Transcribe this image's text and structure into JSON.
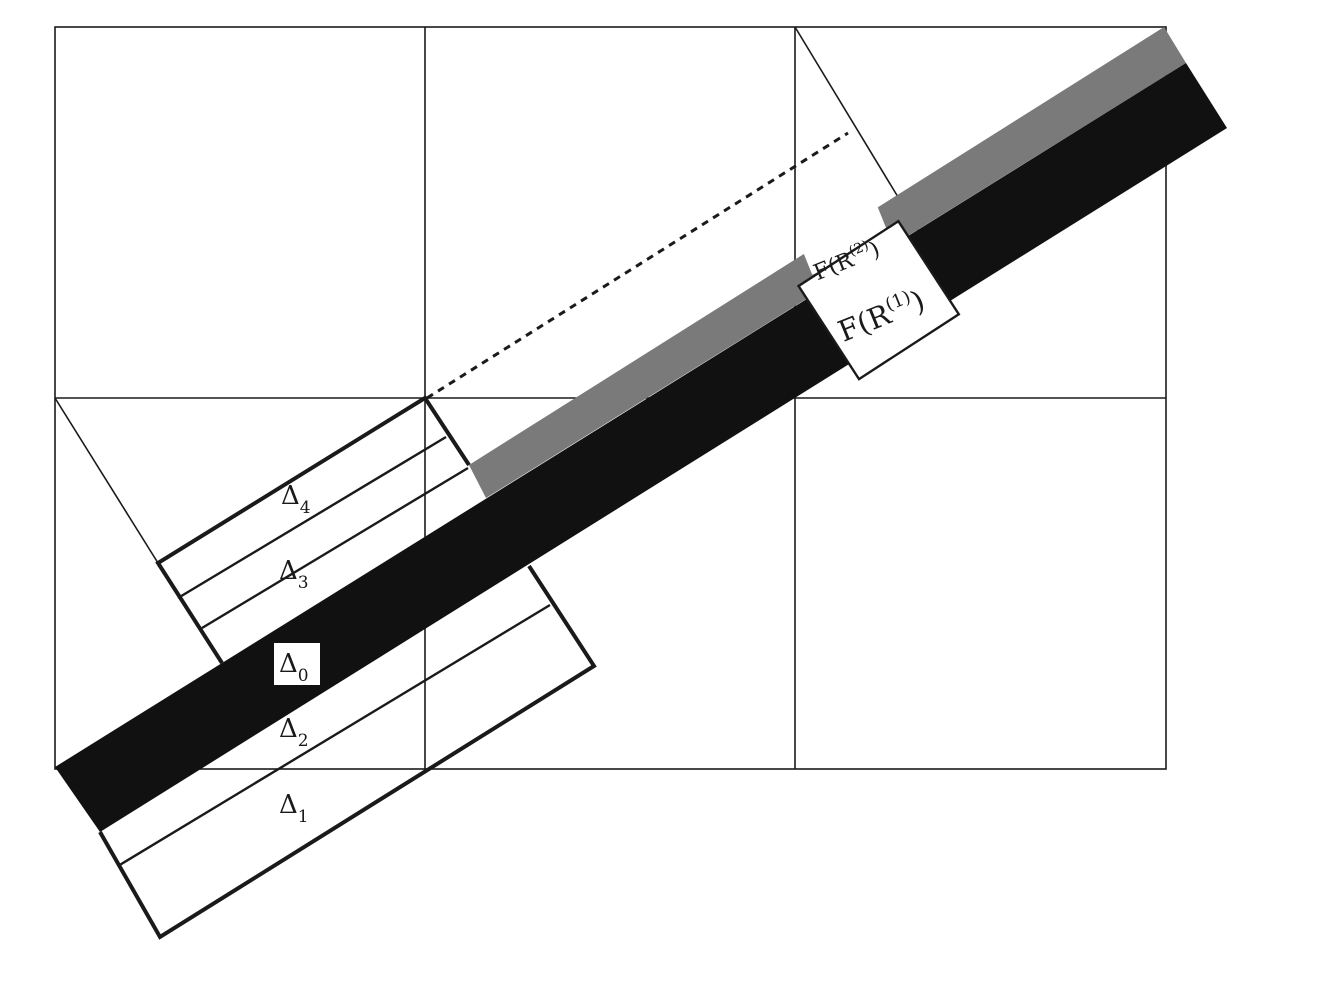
{
  "diagram": {
    "labels": {
      "delta_4": {
        "base": "Δ",
        "sub": "4"
      },
      "delta_3": {
        "base": "Δ",
        "sub": "3"
      },
      "delta_0": {
        "base": "Δ",
        "sub": "0"
      },
      "delta_2": {
        "base": "Δ",
        "sub": "2"
      },
      "delta_1": {
        "base": "Δ",
        "sub": "1"
      },
      "f_r2": {
        "prefix": "F(R",
        "sup": "(2)",
        "suffix": ")"
      },
      "f_r1": {
        "prefix": "F(R",
        "sup": "(1)",
        "suffix": ")"
      }
    },
    "colors": {
      "ink": "#1a1a1a",
      "band_gray": "#7a7a7a",
      "paper": "#ffffff"
    }
  }
}
